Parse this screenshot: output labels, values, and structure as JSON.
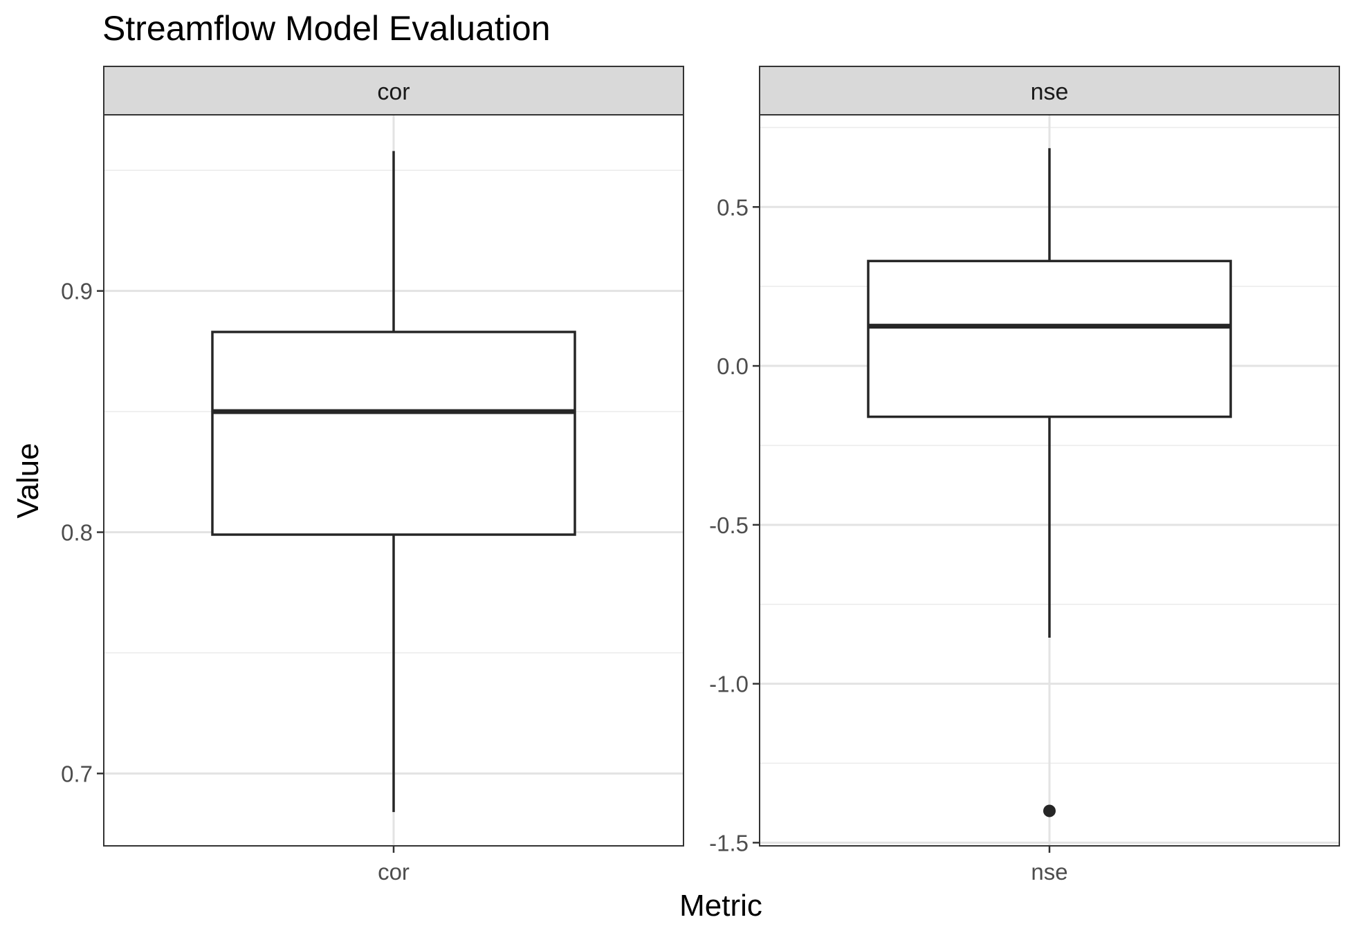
{
  "chart_data": {
    "type": "boxplot",
    "title": "Streamflow Model Evaluation",
    "xlabel": "Metric",
    "ylabel": "Value",
    "facets": [
      {
        "strip_label": "cor",
        "category": "cor",
        "ylim": [
          0.67,
          0.973
        ],
        "y_ticks": [
          0.7,
          0.8,
          0.9
        ],
        "y_tick_labels": [
          "0.7",
          "0.8",
          "0.9"
        ],
        "y_minor": [
          0.75,
          0.85,
          0.95
        ],
        "box": {
          "whisker_low": 0.684,
          "q1": 0.799,
          "median": 0.85,
          "q3": 0.883,
          "whisker_high": 0.958
        },
        "outliers": []
      },
      {
        "strip_label": "nse",
        "category": "nse",
        "ylim": [
          -1.51,
          0.79
        ],
        "y_ticks": [
          -1.5,
          -1.0,
          -0.5,
          0.0,
          0.5
        ],
        "y_tick_labels": [
          "-1.5",
          "-1.0",
          "-0.5",
          "0.0",
          "0.5"
        ],
        "y_minor": [
          -1.25,
          -0.75,
          -0.25,
          0.25,
          0.75
        ],
        "box": {
          "whisker_low": -0.855,
          "q1": -0.16,
          "median": 0.125,
          "q3": 0.33,
          "whisker_high": 0.685
        },
        "outliers": [
          -1.4
        ]
      }
    ],
    "grid": true,
    "theme": "bw"
  }
}
